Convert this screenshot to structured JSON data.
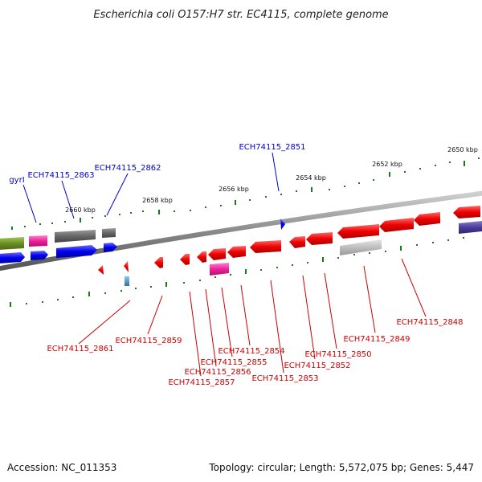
{
  "title": "Escherichia coli O157:H7 str. EC4115, complete genome",
  "footer": {
    "accession": "Accession: NC_011353",
    "summary": "Topology: circular; Length: 5,572,075 bp; Genes: 5,447"
  },
  "scale": {
    "ticks": [
      "2650 kbp",
      "2652 kbp",
      "2654 kbp",
      "2656 kbp",
      "2658 kbp",
      "2660 kbp"
    ]
  },
  "colors": {
    "label_blue": "#0000cc",
    "label_red": "#cc0000",
    "tick_green": "#1a7a1a",
    "backbone": "#7a7a7a"
  },
  "genes": {
    "forward": [
      "gyrI",
      "ECH74115_2863",
      "ECH74115_2862",
      "ECH74115_2851"
    ],
    "reverse": [
      "ECH74115_2848",
      "ECH74115_2849",
      "ECH74115_2850",
      "ECH74115_2852",
      "ECH74115_2853",
      "ECH74115_2854",
      "ECH74115_2855",
      "ECH74115_2856",
      "ECH74115_2857",
      "ECH74115_2859",
      "ECH74115_2861"
    ]
  }
}
